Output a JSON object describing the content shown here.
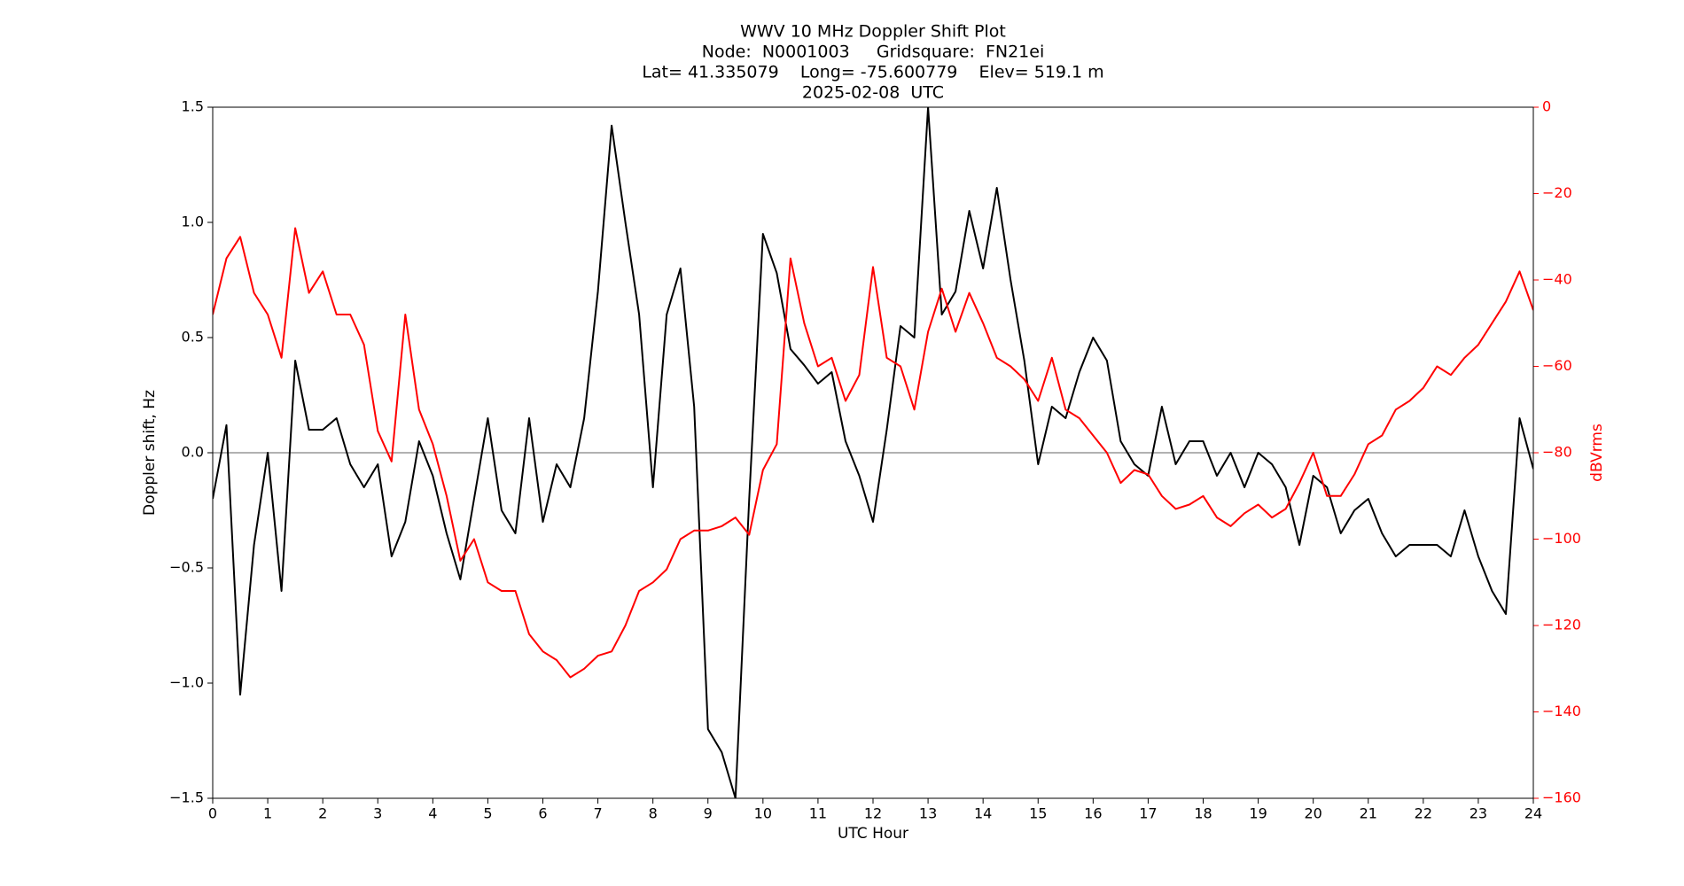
{
  "chart_data": {
    "type": "line",
    "title": [
      "WWV 10 MHz Doppler Shift Plot",
      "Node:  N0001003     Gridsquare:  FN21ei",
      "Lat= 41.335079    Long= -75.600779    Elev= 519.1 m",
      "2025-02-08  UTC"
    ],
    "xlabel": "UTC Hour",
    "ylabel": "Doppler shift, Hz",
    "y2label": "dBVrms",
    "x": [
      0,
      0.25,
      0.5,
      0.75,
      1,
      1.25,
      1.5,
      1.75,
      2,
      2.25,
      2.5,
      2.75,
      3,
      3.25,
      3.5,
      3.75,
      4,
      4.25,
      4.5,
      4.75,
      5,
      5.25,
      5.5,
      5.75,
      6,
      6.25,
      6.5,
      6.75,
      7,
      7.25,
      7.5,
      7.75,
      8,
      8.25,
      8.5,
      8.75,
      9,
      9.25,
      9.5,
      9.75,
      10,
      10.25,
      10.5,
      10.75,
      11,
      11.25,
      11.5,
      11.75,
      12,
      12.25,
      12.5,
      12.75,
      13,
      13.25,
      13.5,
      13.75,
      14,
      14.25,
      14.5,
      14.75,
      15,
      15.25,
      15.5,
      15.75,
      16,
      16.25,
      16.5,
      16.75,
      17,
      17.25,
      17.5,
      17.75,
      18,
      18.25,
      18.5,
      18.75,
      19,
      19.25,
      19.5,
      19.75,
      20,
      20.25,
      20.5,
      20.75,
      21,
      21.25,
      21.5,
      21.75,
      22,
      22.25,
      22.5,
      22.75,
      23,
      23.25,
      23.5,
      23.75,
      24
    ],
    "series": [
      {
        "color": "#000000",
        "values": [
          -0.2,
          0.12,
          -1.05,
          -0.4,
          0,
          -0.6,
          0.4,
          0.1,
          0.1,
          0.15,
          -0.05,
          -0.15,
          -0.05,
          -0.45,
          -0.3,
          0.05,
          -0.1,
          -0.35,
          -0.55,
          -0.2,
          0.15,
          -0.25,
          -0.35,
          0.15,
          -0.3,
          -0.05,
          -0.15,
          0.15,
          0.7,
          1.42,
          1,
          0.6,
          -0.15,
          0.6,
          0.8,
          0.2,
          -1.2,
          -1.3,
          -1.5,
          -0.2,
          0.95,
          0.78,
          0.45,
          0.38,
          0.3,
          0.35,
          0.05,
          -0.1,
          -0.3,
          0.1,
          0.55,
          0.5,
          1.5,
          0.6,
          0.7,
          1.05,
          0.8,
          1.15,
          0.75,
          0.4,
          -0.05,
          0.2,
          0.15,
          0.35,
          0.5,
          0.4,
          0.05,
          -0.05,
          -0.1,
          0.2,
          -0.05,
          0.05,
          0.05,
          -0.1,
          0,
          -0.15,
          0,
          -0.05,
          -0.15,
          -0.4,
          -0.1,
          -0.15,
          -0.35,
          -0.25,
          -0.2,
          -0.35,
          -0.45,
          -0.4,
          -0.4,
          -0.4,
          -0.45,
          -0.25,
          -0.45,
          -0.6,
          -0.7,
          0.15,
          -0.07
        ]
      },
      {
        "color": "#ff0000",
        "axis": "y2",
        "values": [
          -48,
          -35,
          -30,
          -43,
          -48,
          -58,
          -28,
          -43,
          -38,
          -48,
          -48,
          -55,
          -75,
          -82,
          -48,
          -70,
          -78,
          -90,
          -105,
          -100,
          -110,
          -112,
          -112,
          -122,
          -126,
          -128,
          -132,
          -130,
          -127,
          -126,
          -120,
          -112,
          -110,
          -107,
          -100,
          -98,
          -98,
          -97,
          -95,
          -99,
          -84,
          -78,
          -35,
          -50,
          -60,
          -58,
          -68,
          -62,
          -37,
          -58,
          -60,
          -70,
          -52,
          -42,
          -52,
          -43,
          -50,
          -58,
          -60,
          -63,
          -68,
          -58,
          -70,
          -72,
          -76,
          -80,
          -87,
          -84,
          -85,
          -90,
          -93,
          -92,
          -90,
          -95,
          -97,
          -94,
          -92,
          -95,
          -93,
          -87,
          -80,
          -90,
          -90,
          -85,
          -78,
          -76,
          -70,
          -68,
          -65,
          -60,
          -62,
          -58,
          -55,
          -50,
          -45,
          -38,
          -47
        ]
      }
    ],
    "xlim": [
      0,
      24
    ],
    "xticks": [
      0,
      1,
      2,
      3,
      4,
      5,
      6,
      7,
      8,
      9,
      10,
      11,
      12,
      13,
      14,
      15,
      16,
      17,
      18,
      19,
      20,
      21,
      22,
      23,
      24
    ],
    "ylim": [
      -1.5,
      1.5
    ],
    "yticks": [
      {
        "value": -1.5,
        "label": "−1.5"
      },
      {
        "value": -1,
        "label": "−1.0"
      },
      {
        "value": -0.5,
        "label": "−0.5"
      },
      {
        "value": 0,
        "label": "0.0"
      },
      {
        "value": 0.5,
        "label": "0.5"
      },
      {
        "value": 1,
        "label": "1.0"
      },
      {
        "value": 1.5,
        "label": "1.5"
      }
    ],
    "y2lim": [
      -160,
      0
    ],
    "y2ticks": [
      {
        "value": -160,
        "label": "−160"
      },
      {
        "value": -140,
        "label": "−140"
      },
      {
        "value": -120,
        "label": "−120"
      },
      {
        "value": -100,
        "label": "−100"
      },
      {
        "value": -80,
        "label": "−80"
      },
      {
        "value": -60,
        "label": "−60"
      },
      {
        "value": -40,
        "label": "−40"
      },
      {
        "value": -20,
        "label": "−20"
      },
      0
    ],
    "y2color": "#ff0000"
  }
}
